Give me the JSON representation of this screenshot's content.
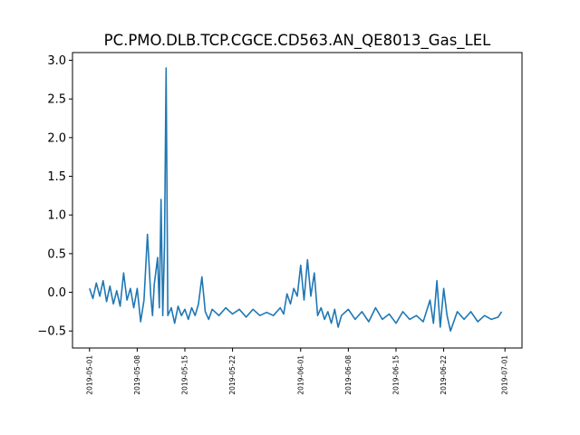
{
  "chart_data": {
    "type": "line",
    "title": "PC.PMO.DLB.TCP.CGCE.CD563.AN_QE8013_Gas_LEL",
    "xlabel": "",
    "ylabel": "",
    "xlim": [
      "2019-04-28T12:00",
      "2019-07-03T12:00"
    ],
    "ylim": [
      -0.72,
      3.1
    ],
    "x_ticks": [
      "2019-05-01",
      "2019-05-08",
      "2019-05-15",
      "2019-05-22",
      "2019-06-01",
      "2019-06-08",
      "2019-06-15",
      "2019-06-22",
      "2019-07-01"
    ],
    "y_ticks": [
      "−0.5",
      "0.0",
      "0.5",
      "1.0",
      "1.5",
      "2.0",
      "2.5",
      "3.0"
    ],
    "y_tick_values": [
      -0.5,
      0.0,
      0.5,
      1.0,
      1.5,
      2.0,
      2.5,
      3.0
    ],
    "grid": false,
    "series_color": "#1f77b4",
    "series": [
      {
        "name": "",
        "x": [
          "2019-05-01T00:00",
          "2019-05-01T12:00",
          "2019-05-02T00:00",
          "2019-05-02T12:00",
          "2019-05-03T00:00",
          "2019-05-03T12:00",
          "2019-05-04T00:00",
          "2019-05-04T12:00",
          "2019-05-05T00:00",
          "2019-05-05T12:00",
          "2019-05-06T00:00",
          "2019-05-06T12:00",
          "2019-05-07T00:00",
          "2019-05-07T12:00",
          "2019-05-08T00:00",
          "2019-05-08T12:00",
          "2019-05-09T00:00",
          "2019-05-09T12:00",
          "2019-05-10T00:00",
          "2019-05-10T06:00",
          "2019-05-10T12:00",
          "2019-05-11T00:00",
          "2019-05-11T06:00",
          "2019-05-11T12:00",
          "2019-05-11T18:00",
          "2019-05-12T00:00",
          "2019-05-12T06:00",
          "2019-05-12T12:00",
          "2019-05-13T00:00",
          "2019-05-13T12:00",
          "2019-05-14T00:00",
          "2019-05-14T12:00",
          "2019-05-15T00:00",
          "2019-05-15T12:00",
          "2019-05-16T00:00",
          "2019-05-16T12:00",
          "2019-05-17T00:00",
          "2019-05-17T12:00",
          "2019-05-18T00:00",
          "2019-05-18T12:00",
          "2019-05-19T00:00",
          "2019-05-20T00:00",
          "2019-05-21T00:00",
          "2019-05-22T00:00",
          "2019-05-23T00:00",
          "2019-05-24T00:00",
          "2019-05-25T00:00",
          "2019-05-26T00:00",
          "2019-05-27T00:00",
          "2019-05-28T00:00",
          "2019-05-29T00:00",
          "2019-05-29T12:00",
          "2019-05-30T00:00",
          "2019-05-30T12:00",
          "2019-05-31T00:00",
          "2019-05-31T12:00",
          "2019-06-01T00:00",
          "2019-06-01T12:00",
          "2019-06-02T00:00",
          "2019-06-02T12:00",
          "2019-06-03T00:00",
          "2019-06-03T12:00",
          "2019-06-04T00:00",
          "2019-06-04T12:00",
          "2019-06-05T00:00",
          "2019-06-05T12:00",
          "2019-06-06T00:00",
          "2019-06-06T12:00",
          "2019-06-07T00:00",
          "2019-06-08T00:00",
          "2019-06-09T00:00",
          "2019-06-10T00:00",
          "2019-06-11T00:00",
          "2019-06-12T00:00",
          "2019-06-13T00:00",
          "2019-06-14T00:00",
          "2019-06-15T00:00",
          "2019-06-16T00:00",
          "2019-06-17T00:00",
          "2019-06-18T00:00",
          "2019-06-19T00:00",
          "2019-06-20T00:00",
          "2019-06-20T12:00",
          "2019-06-21T00:00",
          "2019-06-21T12:00",
          "2019-06-22T00:00",
          "2019-06-22T12:00",
          "2019-06-23T00:00",
          "2019-06-24T00:00",
          "2019-06-25T00:00",
          "2019-06-26T00:00",
          "2019-06-27T00:00",
          "2019-06-28T00:00",
          "2019-06-29T00:00",
          "2019-06-30T00:00",
          "2019-06-30T12:00"
        ],
        "values": [
          0.05,
          -0.08,
          0.12,
          -0.05,
          0.15,
          -0.12,
          0.08,
          -0.15,
          0.02,
          -0.18,
          0.25,
          -0.1,
          0.05,
          -0.2,
          0.05,
          -0.38,
          -0.1,
          0.75,
          -0.05,
          -0.3,
          0.1,
          0.45,
          -0.2,
          1.2,
          -0.3,
          0.6,
          2.9,
          -0.3,
          -0.2,
          -0.4,
          -0.18,
          -0.3,
          -0.22,
          -0.35,
          -0.2,
          -0.3,
          -0.15,
          0.2,
          -0.25,
          -0.35,
          -0.22,
          -0.3,
          -0.2,
          -0.28,
          -0.22,
          -0.32,
          -0.22,
          -0.3,
          -0.26,
          -0.3,
          -0.2,
          -0.28,
          -0.02,
          -0.15,
          0.05,
          -0.05,
          0.35,
          -0.1,
          0.42,
          -0.05,
          0.25,
          -0.3,
          -0.2,
          -0.35,
          -0.25,
          -0.4,
          -0.22,
          -0.45,
          -0.3,
          -0.22,
          -0.35,
          -0.25,
          -0.38,
          -0.2,
          -0.35,
          -0.28,
          -0.4,
          -0.25,
          -0.35,
          -0.3,
          -0.38,
          -0.1,
          -0.4,
          0.15,
          -0.45,
          0.05,
          -0.3,
          -0.5,
          -0.25,
          -0.35,
          -0.25,
          -0.38,
          -0.3,
          -0.35,
          -0.32,
          -0.25
        ]
      }
    ]
  }
}
